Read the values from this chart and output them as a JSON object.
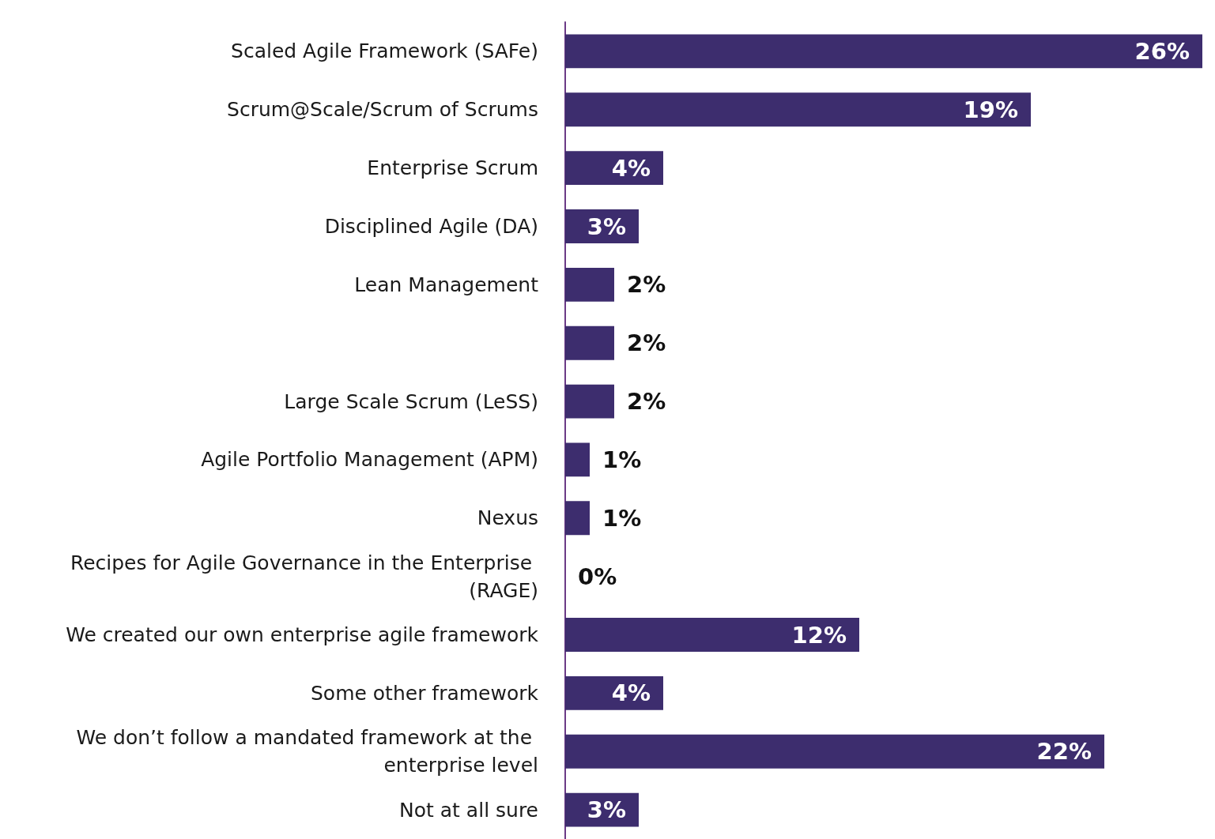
{
  "chart_data": {
    "type": "bar",
    "orientation": "horizontal",
    "categories": [
      "Scaled Agile Framework (SAFe)",
      "Scrum@Scale/Scrum of Scrums",
      "Enterprise Scrum",
      "Disciplined Agile (DA)",
      "Lean Management",
      null,
      "Large Scale Scrum (LeSS)",
      "Agile Portfolio Management (APM)",
      "Nexus",
      "Recipes for Agile Governance in the Enterprise (RAGE)",
      "We created our own enterprise agile framework",
      "Some other framework",
      "We don’t follow a mandated framework at the enterprise level",
      "Not at all sure"
    ],
    "values": [
      26,
      19,
      4,
      3,
      2,
      2,
      2,
      1,
      1,
      0,
      12,
      4,
      22,
      3
    ],
    "value_labels": [
      "26%",
      "19%",
      "4%",
      "3%",
      "2%",
      "2%",
      "2%",
      "1%",
      "1%",
      "0%",
      "12%",
      "4%",
      "22%",
      "3%"
    ],
    "color": "#3d2d6e",
    "tick_labels": "y"
  }
}
